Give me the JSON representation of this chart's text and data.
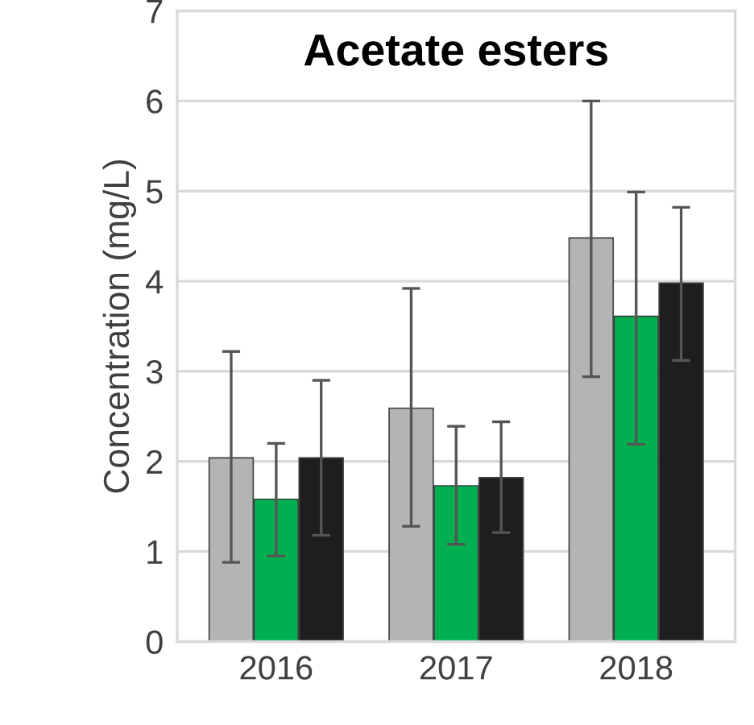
{
  "chart_data": {
    "type": "bar",
    "title": "Acetate esters",
    "ylabel": "Concentration (mg/L)",
    "categories": [
      "2016",
      "2017",
      "2018"
    ],
    "series": [
      {
        "color": "#b4b4b4",
        "values": [
          2.04,
          2.59,
          4.48
        ],
        "errors": [
          [
            0.88,
            3.22
          ],
          [
            1.28,
            3.92
          ],
          [
            2.94,
            6.0
          ]
        ]
      },
      {
        "color": "#00b050",
        "values": [
          1.58,
          1.73,
          3.61
        ],
        "errors": [
          [
            0.95,
            2.2
          ],
          [
            1.08,
            2.39
          ],
          [
            2.19,
            4.99
          ]
        ]
      },
      {
        "color": "#1e1e1e",
        "values": [
          2.04,
          1.82,
          3.98
        ],
        "errors": [
          [
            1.18,
            2.9
          ],
          [
            1.21,
            2.44
          ],
          [
            3.12,
            4.82
          ]
        ]
      }
    ],
    "ylim": [
      0,
      7
    ],
    "yticks": [
      0,
      1,
      2,
      3,
      4,
      5,
      6,
      7
    ],
    "grid": "y"
  }
}
